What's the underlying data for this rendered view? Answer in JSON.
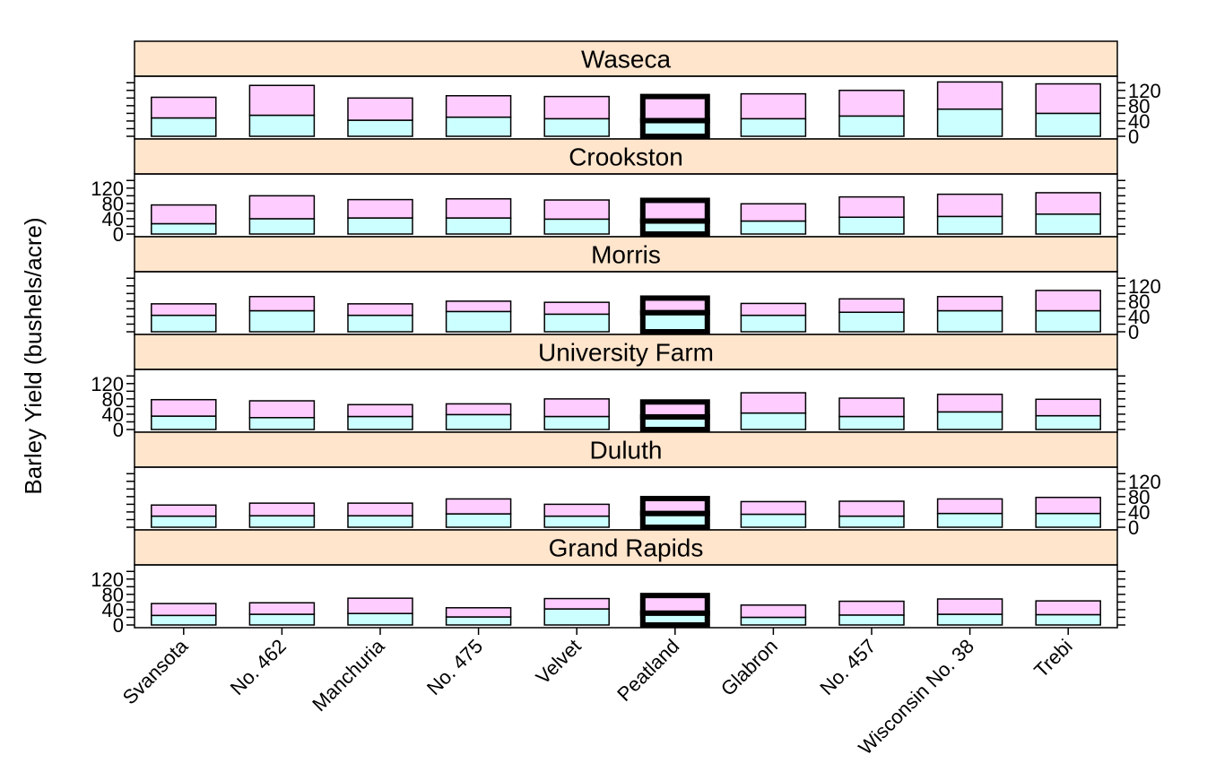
{
  "chart_data": {
    "type": "bar",
    "stacked": true,
    "ylabel": "Barley Yield (bushels/acre)",
    "xlabel": "",
    "ylim": [
      0,
      150
    ],
    "yticks": [
      0,
      40,
      80,
      120
    ],
    "highlight_category": "Peatland",
    "categories": [
      "Svansota",
      "No. 462",
      "Manchuria",
      "No. 475",
      "Velvet",
      "Peatland",
      "Glabron",
      "No. 457",
      "Wisconsin No. 38",
      "Trebi"
    ],
    "colors": {
      "strip": "#FFE5CC",
      "lower": "#CCFFFF",
      "upper": "#FFCCFF"
    },
    "panels": [
      {
        "site": "Waseca",
        "lower": [
          48,
          55,
          42,
          50,
          46,
          41,
          46,
          53,
          71,
          60
        ],
        "total": [
          102,
          133,
          100,
          106,
          104,
          104,
          111,
          120,
          142,
          137
        ]
      },
      {
        "site": "Crookston",
        "lower": [
          27,
          40,
          42,
          42,
          39,
          34,
          34,
          44,
          46,
          52
        ],
        "total": [
          76,
          100,
          90,
          92,
          89,
          88,
          79,
          97,
          104,
          108
        ]
      },
      {
        "site": "Morris",
        "lower": [
          43,
          55,
          43,
          53,
          46,
          50,
          43,
          51,
          55,
          55
        ],
        "total": [
          73,
          92,
          73,
          80,
          77,
          88,
          74,
          86,
          92,
          108
        ]
      },
      {
        "site": "University Farm",
        "lower": [
          35,
          31,
          34,
          39,
          34,
          33,
          43,
          34,
          46,
          36
        ],
        "total": [
          78,
          75,
          65,
          67,
          80,
          72,
          96,
          82,
          92,
          79
        ]
      },
      {
        "site": "Duluth",
        "lower": [
          29,
          30,
          30,
          35,
          29,
          36,
          34,
          29,
          36,
          36
        ],
        "total": [
          58,
          63,
          63,
          74,
          60,
          75,
          67,
          68,
          74,
          78
        ]
      },
      {
        "site": "Grand Rapids",
        "lower": [
          25,
          28,
          30,
          21,
          42,
          31,
          20,
          26,
          28,
          27
        ],
        "total": [
          56,
          58,
          70,
          45,
          69,
          77,
          52,
          62,
          68,
          63
        ]
      }
    ]
  }
}
